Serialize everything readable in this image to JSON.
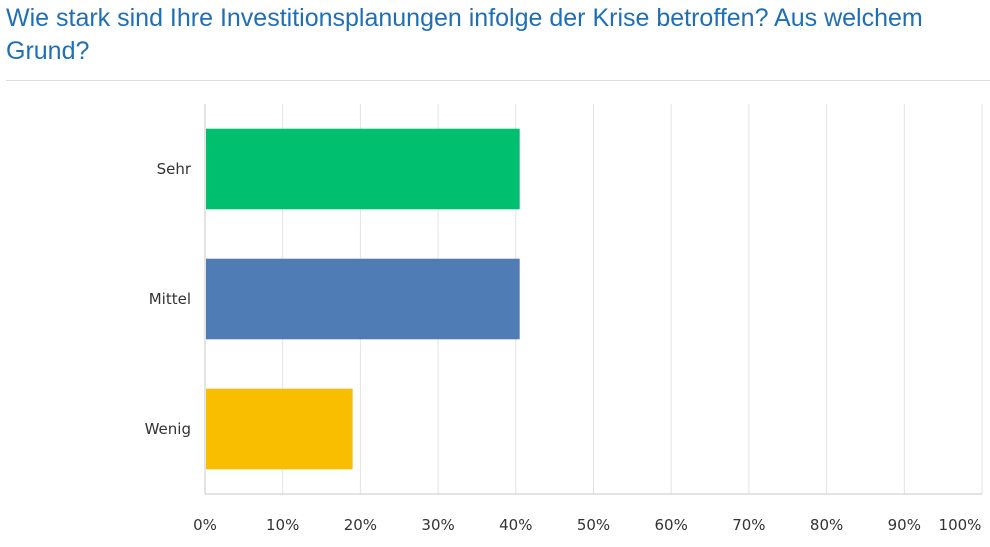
{
  "title": "Wie stark sind Ihre Investitionsplanungen infolge der Krise betroffen? Aus welchem Grund?",
  "chart_data": {
    "type": "bar",
    "orientation": "horizontal",
    "categories": [
      "Sehr",
      "Mittel",
      "Wenig"
    ],
    "values": [
      40.5,
      40.5,
      19
    ],
    "colors": [
      "#00bf6f",
      "#507cb6",
      "#f9be00"
    ],
    "xlim": [
      0,
      100
    ],
    "xticks": [
      "0%",
      "10%",
      "20%",
      "30%",
      "40%",
      "50%",
      "60%",
      "70%",
      "80%",
      "90%",
      "100%"
    ],
    "grid": true
  }
}
